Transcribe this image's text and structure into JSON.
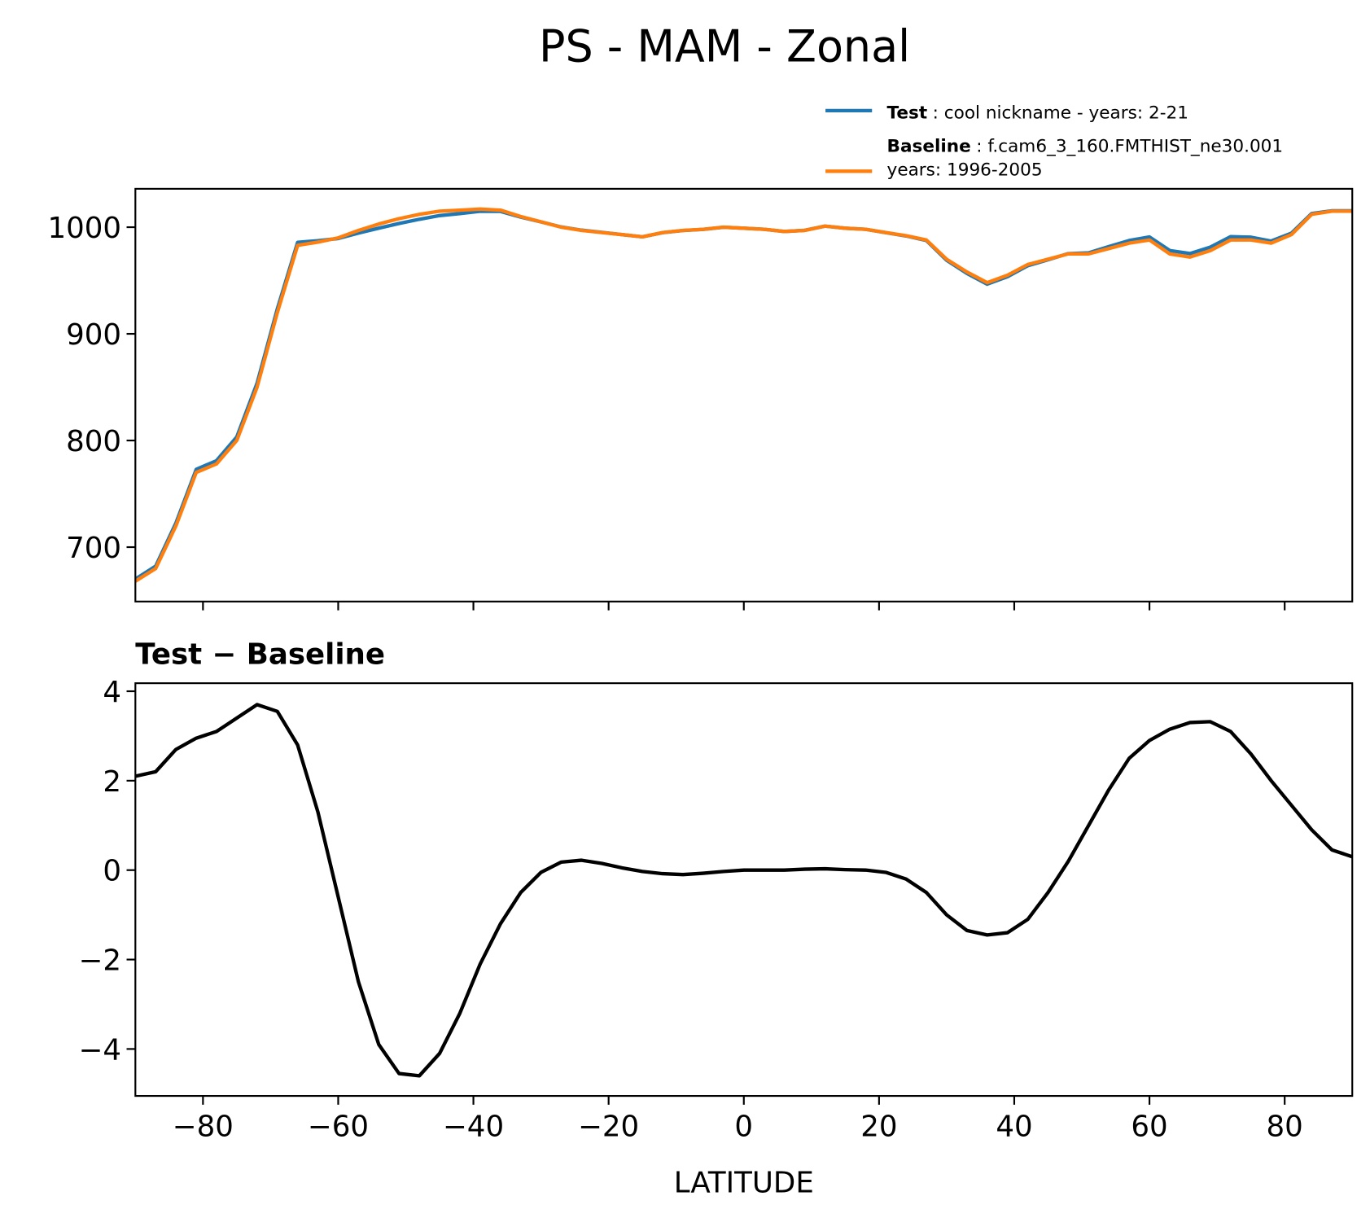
{
  "title": "PS - MAM - Zonal",
  "chart_data": [
    {
      "type": "line",
      "x": [
        -90,
        -87,
        -84,
        -81,
        -78,
        -75,
        -72,
        -69,
        -66,
        -63,
        -60,
        -57,
        -54,
        -51,
        -48,
        -45,
        -42,
        -39,
        -36,
        -33,
        -30,
        -27,
        -24,
        -21,
        -18,
        -15,
        -12,
        -9,
        -6,
        -3,
        0,
        3,
        6,
        9,
        12,
        15,
        18,
        21,
        24,
        27,
        30,
        33,
        36,
        39,
        42,
        45,
        48,
        51,
        54,
        57,
        60,
        63,
        66,
        69,
        72,
        75,
        78,
        81,
        84,
        87,
        90
      ],
      "series": [
        {
          "name": "Test",
          "label": [
            ": cool nickname - years: 2-21"
          ],
          "color": "#1f77b4",
          "values": [
            670.1,
            682.2,
            722.7,
            772.95,
            781.1,
            803.4,
            853.7,
            923.55,
            985.8,
            987.3,
            989.4,
            994.5,
            999.1,
            1003.45,
            1007.4,
            1010.9,
            1012.8,
            1014.9,
            1014.8,
            1009.5,
            1004.95,
            1000.18,
            997.22,
            995.15,
            993.05,
            990.97,
            994.92,
            996.9,
            997.93,
            999.97,
            999,
            998,
            996,
            997.02,
            1001.03,
            999.01,
            998,
            994.95,
            991.8,
            987.5,
            969,
            956.65,
            946.55,
            953.6,
            963.9,
            969.5,
            975.2,
            976,
            981.8,
            987.5,
            990.9,
            978.15,
            975.3,
            981.32,
            991.1,
            990.6,
            987,
            994.45,
            1012.9,
            1015.45,
            1015.3
          ]
        },
        {
          "name": "Baseline",
          "label": [
            ": f.cam6_3_160.FMTHIST_ne30.001",
            "years: 1996-2005"
          ],
          "color": "#ff7f0e",
          "values": [
            668,
            680,
            720,
            770,
            778,
            800,
            850,
            920,
            983,
            986,
            990,
            997,
            1003,
            1008,
            1012,
            1015,
            1016,
            1017,
            1016,
            1010,
            1005,
            1000,
            997,
            995,
            993,
            991,
            995,
            997,
            998,
            1000,
            999,
            998,
            996,
            997,
            1001,
            999,
            998,
            995,
            992,
            988,
            970,
            958,
            948,
            955,
            965,
            970,
            975,
            975,
            980,
            985,
            988,
            975,
            972,
            978,
            988,
            988,
            985,
            993,
            1012,
            1015,
            1015
          ]
        }
      ],
      "xlim": [
        -90,
        90
      ],
      "xticks": [
        {
          "value": -80,
          "label": "−80"
        },
        {
          "value": -60,
          "label": "−60"
        },
        {
          "value": -40,
          "label": "−40"
        },
        {
          "value": -20,
          "label": "−20"
        },
        0,
        20,
        40,
        60,
        80
      ],
      "ylim": [
        649,
        1036
      ],
      "yticks": [
        700,
        800,
        900,
        1000
      ]
    },
    {
      "type": "line",
      "title": "Test − Baseline",
      "xlabel": "LATITUDE",
      "x": [
        -90,
        -87,
        -84,
        -81,
        -78,
        -75,
        -72,
        -69,
        -66,
        -63,
        -60,
        -57,
        -54,
        -51,
        -48,
        -45,
        -42,
        -39,
        -36,
        -33,
        -30,
        -27,
        -24,
        -21,
        -18,
        -15,
        -12,
        -9,
        -6,
        -3,
        0,
        3,
        6,
        9,
        12,
        15,
        18,
        21,
        24,
        27,
        30,
        33,
        36,
        39,
        42,
        45,
        48,
        51,
        54,
        57,
        60,
        63,
        66,
        69,
        72,
        75,
        78,
        81,
        84,
        87,
        90
      ],
      "series": [
        {
          "color": "#000000",
          "values": [
            2.1,
            2.2,
            2.7,
            2.95,
            3.1,
            3.4,
            3.7,
            3.55,
            2.8,
            1.3,
            -0.6,
            -2.5,
            -3.9,
            -4.55,
            -4.6,
            -4.1,
            -3.2,
            -2.1,
            -1.2,
            -0.5,
            -0.05,
            0.18,
            0.22,
            0.15,
            0.05,
            -0.03,
            -0.08,
            -0.1,
            -0.07,
            -0.03,
            0,
            0,
            0,
            0.02,
            0.03,
            0.01,
            0,
            -0.05,
            -0.2,
            -0.5,
            -1.0,
            -1.35,
            -1.45,
            -1.4,
            -1.1,
            -0.5,
            0.2,
            1.0,
            1.8,
            2.5,
            2.9,
            3.15,
            3.3,
            3.32,
            3.1,
            2.6,
            2.0,
            1.45,
            0.9,
            0.45,
            0.3
          ]
        }
      ],
      "xlim": [
        -90,
        90
      ],
      "xticks": [
        {
          "value": -80,
          "label": "−80"
        },
        {
          "value": -60,
          "label": "−60"
        },
        {
          "value": -40,
          "label": "−40"
        },
        {
          "value": -20,
          "label": "−20"
        },
        0,
        20,
        40,
        60,
        80
      ],
      "ylim": [
        -5.05,
        4.18
      ],
      "yticks": [
        {
          "value": -4,
          "label": "−4"
        },
        {
          "value": -2,
          "label": "−2"
        },
        0,
        2,
        4
      ]
    }
  ]
}
